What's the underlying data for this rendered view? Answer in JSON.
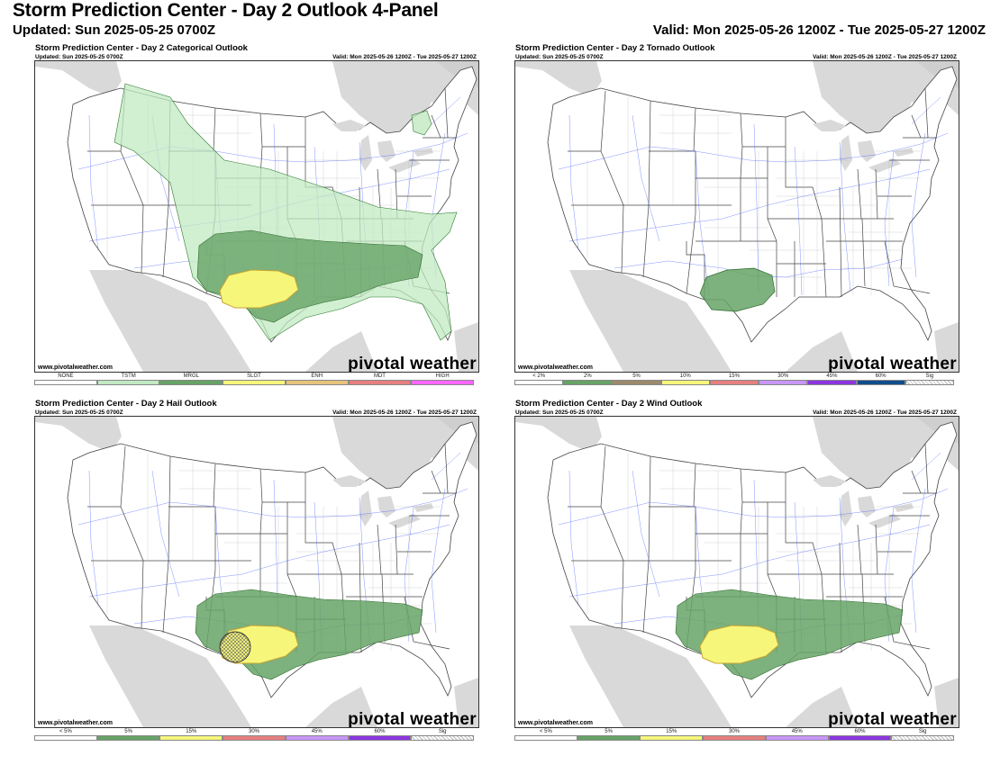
{
  "header": {
    "title": "Storm Prediction Center - Day 2 Outlook 4-Panel",
    "updated": "Updated: Sun 2025-05-25 0700Z",
    "valid": "Valid: Mon 2025-05-26 1200Z - Tue 2025-05-27 1200Z"
  },
  "panels": [
    {
      "title": "Storm Prediction Center - Day 2 Categorical Outlook",
      "updated": "Updated: Sun 2025-05-25 0700Z",
      "valid": "Valid: Mon 2025-05-26 1200Z - Tue 2025-05-27 1200Z",
      "credit": "www.pivotalweather.com",
      "brand": "pivotal weather",
      "legend": [
        {
          "label": "NONE",
          "color": "#ffffff"
        },
        {
          "label": "TSTM",
          "color": "#c1e9c1"
        },
        {
          "label": "MRGL",
          "color": "#66a366"
        },
        {
          "label": "SLGT",
          "color": "#f6f67b"
        },
        {
          "label": "ENH",
          "color": "#e6c27a"
        },
        {
          "label": "MDT",
          "color": "#e67f7f"
        },
        {
          "label": "HIGH",
          "color": "#ff66ff"
        }
      ]
    },
    {
      "title": "Storm Prediction Center - Day 2 Tornado Outlook",
      "updated": "Updated: Sun 2025-05-25 0700Z",
      "valid": "Valid: Mon 2025-05-26 1200Z - Tue 2025-05-27 1200Z",
      "credit": "www.pivotalweather.com",
      "brand": "pivotal weather",
      "legend": [
        {
          "label": "< 2%",
          "color": "#ffffff"
        },
        {
          "label": "2%",
          "color": "#66a366"
        },
        {
          "label": "5%",
          "color": "#9d8a6a"
        },
        {
          "label": "10%",
          "color": "#f6f67b"
        },
        {
          "label": "15%",
          "color": "#e67f7f"
        },
        {
          "label": "30%",
          "color": "#c896f7"
        },
        {
          "label": "45%",
          "color": "#8c35e0"
        },
        {
          "label": "60%",
          "color": "#104e8b"
        },
        {
          "label": "Sig",
          "color": "hatch"
        }
      ]
    },
    {
      "title": "Storm Prediction Center - Day 2 Hail Outlook",
      "updated": "Updated: Sun 2025-05-25 0700Z",
      "valid": "Valid: Mon 2025-05-26 1200Z - Tue 2025-05-27 1200Z",
      "credit": "www.pivotalweather.com",
      "brand": "pivotal weather",
      "legend": [
        {
          "label": "< 5%",
          "color": "#ffffff"
        },
        {
          "label": "5%",
          "color": "#66a366"
        },
        {
          "label": "15%",
          "color": "#f6f67b"
        },
        {
          "label": "30%",
          "color": "#e67f7f"
        },
        {
          "label": "45%",
          "color": "#c896f7"
        },
        {
          "label": "60%",
          "color": "#8c35e0"
        },
        {
          "label": "Sig",
          "color": "hatch"
        }
      ]
    },
    {
      "title": "Storm Prediction Center - Day 2 Wind Outlook",
      "updated": "Updated: Sun 2025-05-25 0700Z",
      "valid": "Valid: Mon 2025-05-26 1200Z - Tue 2025-05-27 1200Z",
      "credit": "www.pivotalweather.com",
      "brand": "pivotal weather",
      "legend": [
        {
          "label": "< 5%",
          "color": "#ffffff"
        },
        {
          "label": "5%",
          "color": "#66a366"
        },
        {
          "label": "15%",
          "color": "#f6f67b"
        },
        {
          "label": "30%",
          "color": "#e67f7f"
        },
        {
          "label": "45%",
          "color": "#c896f7"
        },
        {
          "label": "60%",
          "color": "#8c35e0"
        },
        {
          "label": "Sig",
          "color": "hatch"
        }
      ]
    }
  ]
}
